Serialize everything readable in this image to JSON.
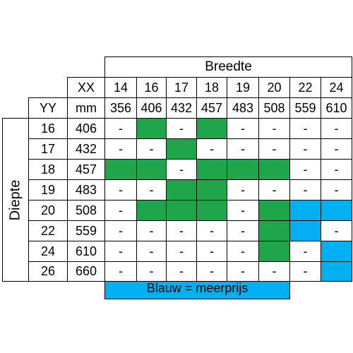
{
  "table": {
    "breedte_label": "Breedte",
    "diepte_label": "Diepte",
    "xx_label": "XX",
    "yy_label": "YY",
    "mm_label": "mm",
    "widths": [
      "14",
      "16",
      "17",
      "18",
      "19",
      "20",
      "22",
      "24"
    ],
    "widths_mm": [
      "356",
      "406",
      "432",
      "457",
      "483",
      "508",
      "559",
      "610"
    ],
    "rows": [
      {
        "depth": "16",
        "mm": "406",
        "cells": [
          "-",
          "G",
          "-",
          "G",
          "-",
          "-",
          "-",
          "-"
        ]
      },
      {
        "depth": "17",
        "mm": "432",
        "cells": [
          "-",
          "-",
          "G",
          "-",
          "-",
          "-",
          "-",
          "-"
        ]
      },
      {
        "depth": "18",
        "mm": "457",
        "cells": [
          "G",
          "G",
          "-",
          "G",
          "G",
          "G",
          "-",
          "-"
        ]
      },
      {
        "depth": "19",
        "mm": "483",
        "cells": [
          "-",
          "-",
          "G",
          "G",
          "-",
          "-",
          "-",
          "-"
        ]
      },
      {
        "depth": "20",
        "mm": "508",
        "cells": [
          "-",
          "G",
          "G",
          "G",
          "-",
          "G",
          "B",
          "B"
        ]
      },
      {
        "depth": "22",
        "mm": "559",
        "cells": [
          "-",
          "-",
          "-",
          "-",
          "-",
          "G",
          "B",
          "-"
        ]
      },
      {
        "depth": "24",
        "mm": "610",
        "cells": [
          "-",
          "-",
          "-",
          "-",
          "-",
          "G",
          "-",
          "B"
        ]
      },
      {
        "depth": "26",
        "mm": "660",
        "cells": [
          "-",
          "-",
          "-",
          "-",
          "-",
          "-",
          "-",
          "B"
        ]
      }
    ],
    "dash": "-",
    "colors": {
      "green": "#1fa64a",
      "blue": "#00b0f0"
    }
  },
  "legend": {
    "text": "Blauw = meerprijs"
  }
}
